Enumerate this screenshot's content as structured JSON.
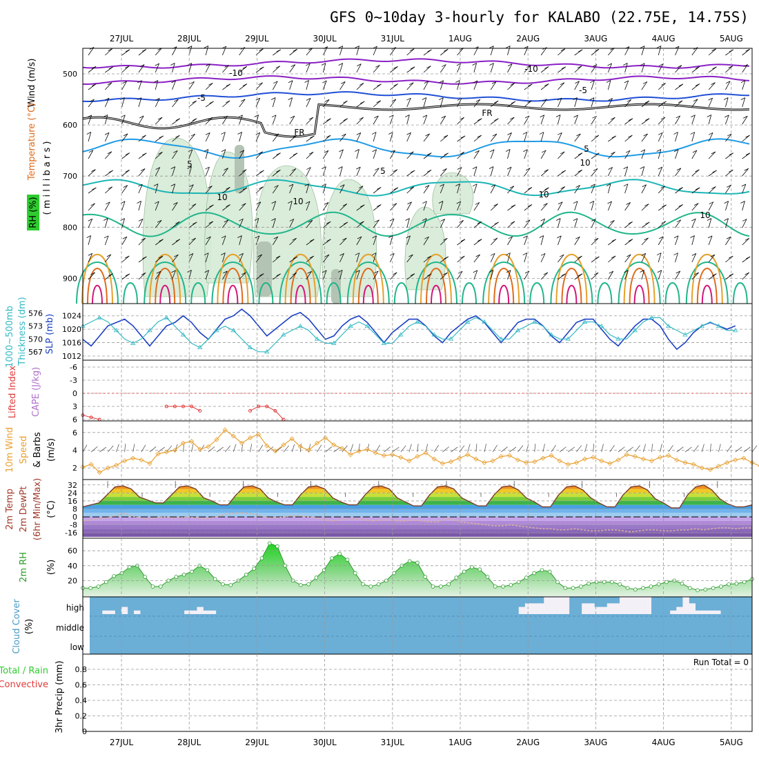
{
  "title": "GFS 0~10day 3-hourly for KALABO (22.75E, 14.75S)",
  "day_labels": [
    "27JUL",
    "28JUL",
    "29JUL",
    "30JUL",
    "31JUL",
    "1AUG",
    "2AUG",
    "3AUG",
    "4AUG",
    "5AUG"
  ],
  "colors": {
    "rh_fill": "#d6ebd6",
    "wind_barb": "#000000",
    "t_minus10": "#8a1fc4",
    "t_minus5": "#1f4fd6",
    "t_freeze": "#000000",
    "t5": "#1e9be6",
    "t10": "#1ab5b5",
    "t15": "#1fb58a",
    "t20": "#e6a02a",
    "t25": "#e06a1a",
    "t30": "#d4167a",
    "slp_line": "#1a3fc4",
    "thick_line": "#33b8c4",
    "li_line": "#e03a3a",
    "wind10m": "#e8a030",
    "rh2m": "#2a9a2a",
    "cloud_bg": "#6baed6",
    "cloud_fill": "#f3f0f7"
  },
  "panel_upper": {
    "ylabel_wind": "Wind (m/s)",
    "ylabel_temp": "Temperature (°C)",
    "ylabel_rh": "RH (%)",
    "ylabel_units": "( m i l l i b a r s )",
    "pressure_ticks": [
      "500",
      "600",
      "700",
      "800",
      "900"
    ],
    "contour_labels": [
      "-10",
      "-10",
      "-5",
      "-5",
      "FR",
      "FR",
      "5",
      "5",
      "5",
      "10",
      "10",
      "10",
      "10",
      "10"
    ]
  },
  "panel_slp": {
    "ylabel_thick": "Thickness (dm)",
    "ylabel_thick_top": "1000~500mb",
    "ylabel_slp": "SLP (mb)",
    "thick_ticks": [
      "576",
      "573",
      "570",
      "567"
    ],
    "slp_ticks": [
      "1024",
      "1020",
      "1016",
      "1012"
    ]
  },
  "panel_li": {
    "ylabel_li": "Lifted Index",
    "ylabel_cape": "CAPE (J/kg)",
    "ticks": [
      "-6",
      "-3",
      "0",
      "3",
      "6"
    ]
  },
  "panel_wind": {
    "ylabel_a": "10m Wind",
    "ylabel_b": "Speed",
    "ylabel_c": "& Barbs",
    "ylabel_unit": "(m/s)",
    "ticks": [
      "6",
      "4",
      "2"
    ]
  },
  "panel_temp": {
    "ylabel_a": "2m Temp",
    "ylabel_b": "2m DewPt",
    "ylabel_c": "(6hr Min/Max)",
    "ylabel_unit": "(°C)",
    "ticks": [
      "32",
      "24",
      "16",
      "8",
      "0",
      "-8",
      "-16"
    ]
  },
  "panel_rh": {
    "ylabel": "2m RH",
    "ylabel_unit": "(%)",
    "ticks": [
      "60",
      "40",
      "20"
    ]
  },
  "panel_cloud": {
    "ylabel": "Cloud Cover",
    "ylabel_unit": "(%)",
    "levels": [
      "high",
      "middle",
      "low"
    ]
  },
  "panel_precip": {
    "ylabel_a": "Total / Rain",
    "ylabel_b": "Convective",
    "ylabel_c": "3hr Precip (mm)",
    "ticks": [
      "0.8",
      "0.6",
      "0.4",
      "0.2",
      "0"
    ],
    "run_total": "Run Total = 0"
  },
  "chart_data": [
    {
      "type": "line",
      "name": "slp-thickness",
      "x_start": "26JUL12",
      "x_step_hours": 3,
      "series": [
        {
          "name": "SLP (mb)",
          "values": [
            1017,
            1015,
            1018,
            1021,
            1022,
            1023,
            1021,
            1018,
            1015,
            1018,
            1021,
            1022,
            1024,
            1022,
            1019,
            1017,
            1020,
            1023,
            1024,
            1026,
            1024,
            1021,
            1018,
            1020,
            1022,
            1024,
            1025,
            1023,
            1020,
            1017,
            1018,
            1021,
            1023,
            1024,
            1022,
            1019,
            1016,
            1019,
            1021,
            1023,
            1023,
            1021,
            1018,
            1016,
            1019,
            1021,
            1023,
            1024,
            1022,
            1019,
            1016,
            1019,
            1022,
            1023,
            1023,
            1021,
            1018,
            1016,
            1019,
            1022,
            1023,
            1023,
            1020,
            1017,
            1015,
            1018,
            1021,
            1023,
            1023,
            1021,
            1017,
            1014,
            1016,
            1019,
            1021,
            1022,
            1021,
            1020,
            1021
          ]
        },
        {
          "name": "Thickness (dm)",
          "values": [
            573,
            574,
            575,
            574,
            572,
            570,
            569,
            570,
            572,
            574,
            575,
            573,
            571,
            569,
            568,
            570,
            572,
            573,
            572,
            570,
            568,
            567,
            567,
            569,
            571,
            572,
            573,
            572,
            570,
            569,
            569,
            571,
            573,
            574,
            573,
            571,
            569,
            569,
            571,
            573,
            574,
            573,
            571,
            570,
            570,
            572,
            574,
            575,
            574,
            572,
            570,
            570,
            572,
            573,
            574,
            573,
            571,
            570,
            570,
            572,
            574,
            574,
            573,
            571,
            570,
            570,
            572,
            574,
            575,
            575,
            573,
            572,
            571,
            572,
            573,
            574,
            573,
            572,
            572
          ]
        }
      ],
      "ylim_slp": [
        1012,
        1026
      ],
      "ylim_thick": [
        566,
        577
      ]
    },
    {
      "type": "line",
      "name": "lifted-index",
      "series": [
        {
          "name": "Lifted Index",
          "segments": [
            [
              5,
              5.5,
              6
            ],
            [
              3,
              3,
              3,
              3,
              4
            ],
            [
              4,
              3,
              3,
              4,
              6
            ]
          ]
        }
      ],
      "ylim": [
        6,
        -6
      ]
    },
    {
      "type": "line",
      "name": "wind10m",
      "series": [
        {
          "name": "Speed",
          "values": [
            2.1,
            2.4,
            1.5,
            2.0,
            2.3,
            2.8,
            3.1,
            2.9,
            2.5,
            3.6,
            3.8,
            4.0,
            4.8,
            5.0,
            4.1,
            4.4,
            5.2,
            6.3,
            5.6,
            4.8,
            5.4,
            5.8,
            4.5,
            3.9,
            4.6,
            5.3,
            4.4,
            4.0,
            4.8,
            5.4,
            4.6,
            4.2,
            3.5,
            3.9,
            4.1,
            3.7,
            3.4,
            3.5,
            3.2,
            2.8,
            3.3,
            3.7,
            3.0,
            2.5,
            2.7,
            3.1,
            3.5,
            3.0,
            2.6,
            2.8,
            3.3,
            3.4,
            2.9,
            2.6,
            2.7,
            3.1,
            3.4,
            2.8,
            2.4,
            2.6,
            3.0,
            3.2,
            2.8,
            2.5,
            2.9,
            3.5,
            3.3,
            3.0,
            2.8,
            3.2,
            3.4,
            2.9,
            2.6,
            2.4,
            2.0,
            1.8,
            2.2,
            2.6,
            2.9,
            3.1,
            2.6,
            2.2
          ]
        }
      ],
      "ylim": [
        1,
        7
      ]
    },
    {
      "type": "area",
      "name": "temp2m",
      "series": [
        {
          "name": "2m Temp",
          "values": [
            10,
            12,
            14,
            22,
            30,
            31,
            28,
            20,
            17,
            14,
            14,
            22,
            30,
            31,
            28,
            19,
            16,
            12,
            12,
            22,
            30,
            31,
            28,
            19,
            15,
            12,
            12,
            22,
            30,
            31,
            28,
            19,
            15,
            12,
            12,
            22,
            30,
            31,
            28,
            19,
            15,
            11,
            11,
            22,
            30,
            31,
            28,
            19,
            15,
            11,
            11,
            22,
            30,
            31,
            27,
            19,
            15,
            10,
            10,
            22,
            30,
            31,
            27,
            19,
            14,
            10,
            10,
            22,
            30,
            31,
            27,
            18,
            14,
            9,
            9,
            22,
            30,
            32,
            27,
            18,
            13,
            10,
            10,
            12
          ]
        },
        {
          "name": "2m DewPt",
          "values": [
            -4,
            -3,
            -2,
            -1,
            1,
            4,
            1,
            -1,
            -2,
            -1,
            0,
            -1,
            -1,
            0,
            -1,
            -2,
            -1,
            1,
            3,
            4,
            4,
            3,
            1,
            -1,
            -1,
            0,
            1,
            1,
            0,
            -1,
            -3,
            -4,
            -3,
            -2,
            -2,
            -3,
            -4,
            -3,
            -3,
            -4,
            -4,
            -3,
            -4,
            -5,
            -5,
            -2,
            -3,
            -5,
            -6,
            -7,
            -8,
            -9,
            -9,
            -8,
            -9,
            -10,
            -11,
            -12,
            -12,
            -13,
            -13,
            -12,
            -13,
            -14,
            -14,
            -13,
            -13,
            -14,
            -15,
            -14,
            -13,
            -13,
            -14,
            -14,
            -13,
            -13,
            -12,
            -13,
            -12,
            -11,
            -11,
            -12,
            -11,
            -11
          ]
        }
      ],
      "ylim": [
        -20,
        36
      ]
    },
    {
      "type": "area",
      "name": "rh2m",
      "series": [
        {
          "name": "2m RH",
          "values": [
            10,
            10,
            12,
            18,
            26,
            30,
            38,
            40,
            25,
            12,
            12,
            20,
            25,
            28,
            32,
            40,
            34,
            22,
            15,
            14,
            20,
            28,
            36,
            50,
            70,
            66,
            40,
            20,
            14,
            15,
            24,
            34,
            50,
            56,
            48,
            30,
            15,
            12,
            15,
            20,
            30,
            40,
            46,
            44,
            25,
            12,
            12,
            15,
            24,
            32,
            38,
            35,
            25,
            12,
            12,
            14,
            18,
            24,
            30,
            34,
            32,
            18,
            10,
            10,
            12,
            16,
            18,
            18,
            18,
            15,
            10,
            8,
            10,
            12,
            15,
            18,
            20,
            16,
            10,
            7,
            8,
            10,
            12,
            15,
            16,
            18,
            22
          ]
        }
      ],
      "ylim": [
        0,
        75
      ]
    },
    {
      "type": "bar",
      "name": "cloud-high",
      "series": [
        {
          "name": "high",
          "values": [
            0,
            0,
            20,
            20,
            0,
            40,
            0,
            20,
            0,
            0,
            0,
            0,
            0,
            0,
            0,
            20,
            20,
            40,
            20,
            20,
            0,
            0,
            0,
            0,
            0,
            0,
            0,
            0,
            0,
            0,
            0,
            0,
            0,
            0,
            0,
            0,
            0,
            0,
            0,
            0,
            0,
            0,
            0,
            0,
            0,
            0,
            0,
            0,
            0,
            0,
            0,
            0,
            0,
            0,
            0,
            0,
            0,
            0,
            0,
            0,
            0,
            0,
            0,
            0,
            0,
            0,
            0,
            0,
            40,
            60,
            60,
            60,
            100,
            100,
            100,
            100,
            0,
            0,
            60,
            60,
            40,
            40,
            60,
            60,
            100,
            100,
            100,
            100,
            100,
            0,
            0,
            0,
            20,
            40,
            100,
            60,
            20,
            20,
            20,
            20,
            0,
            0,
            0,
            0,
            0
          ]
        }
      ],
      "ylim": [
        0,
        100
      ]
    },
    {
      "type": "bar",
      "name": "precip3h",
      "series": [
        {
          "name": "Total",
          "values": []
        }
      ],
      "ylim": [
        0,
        1
      ]
    }
  ]
}
